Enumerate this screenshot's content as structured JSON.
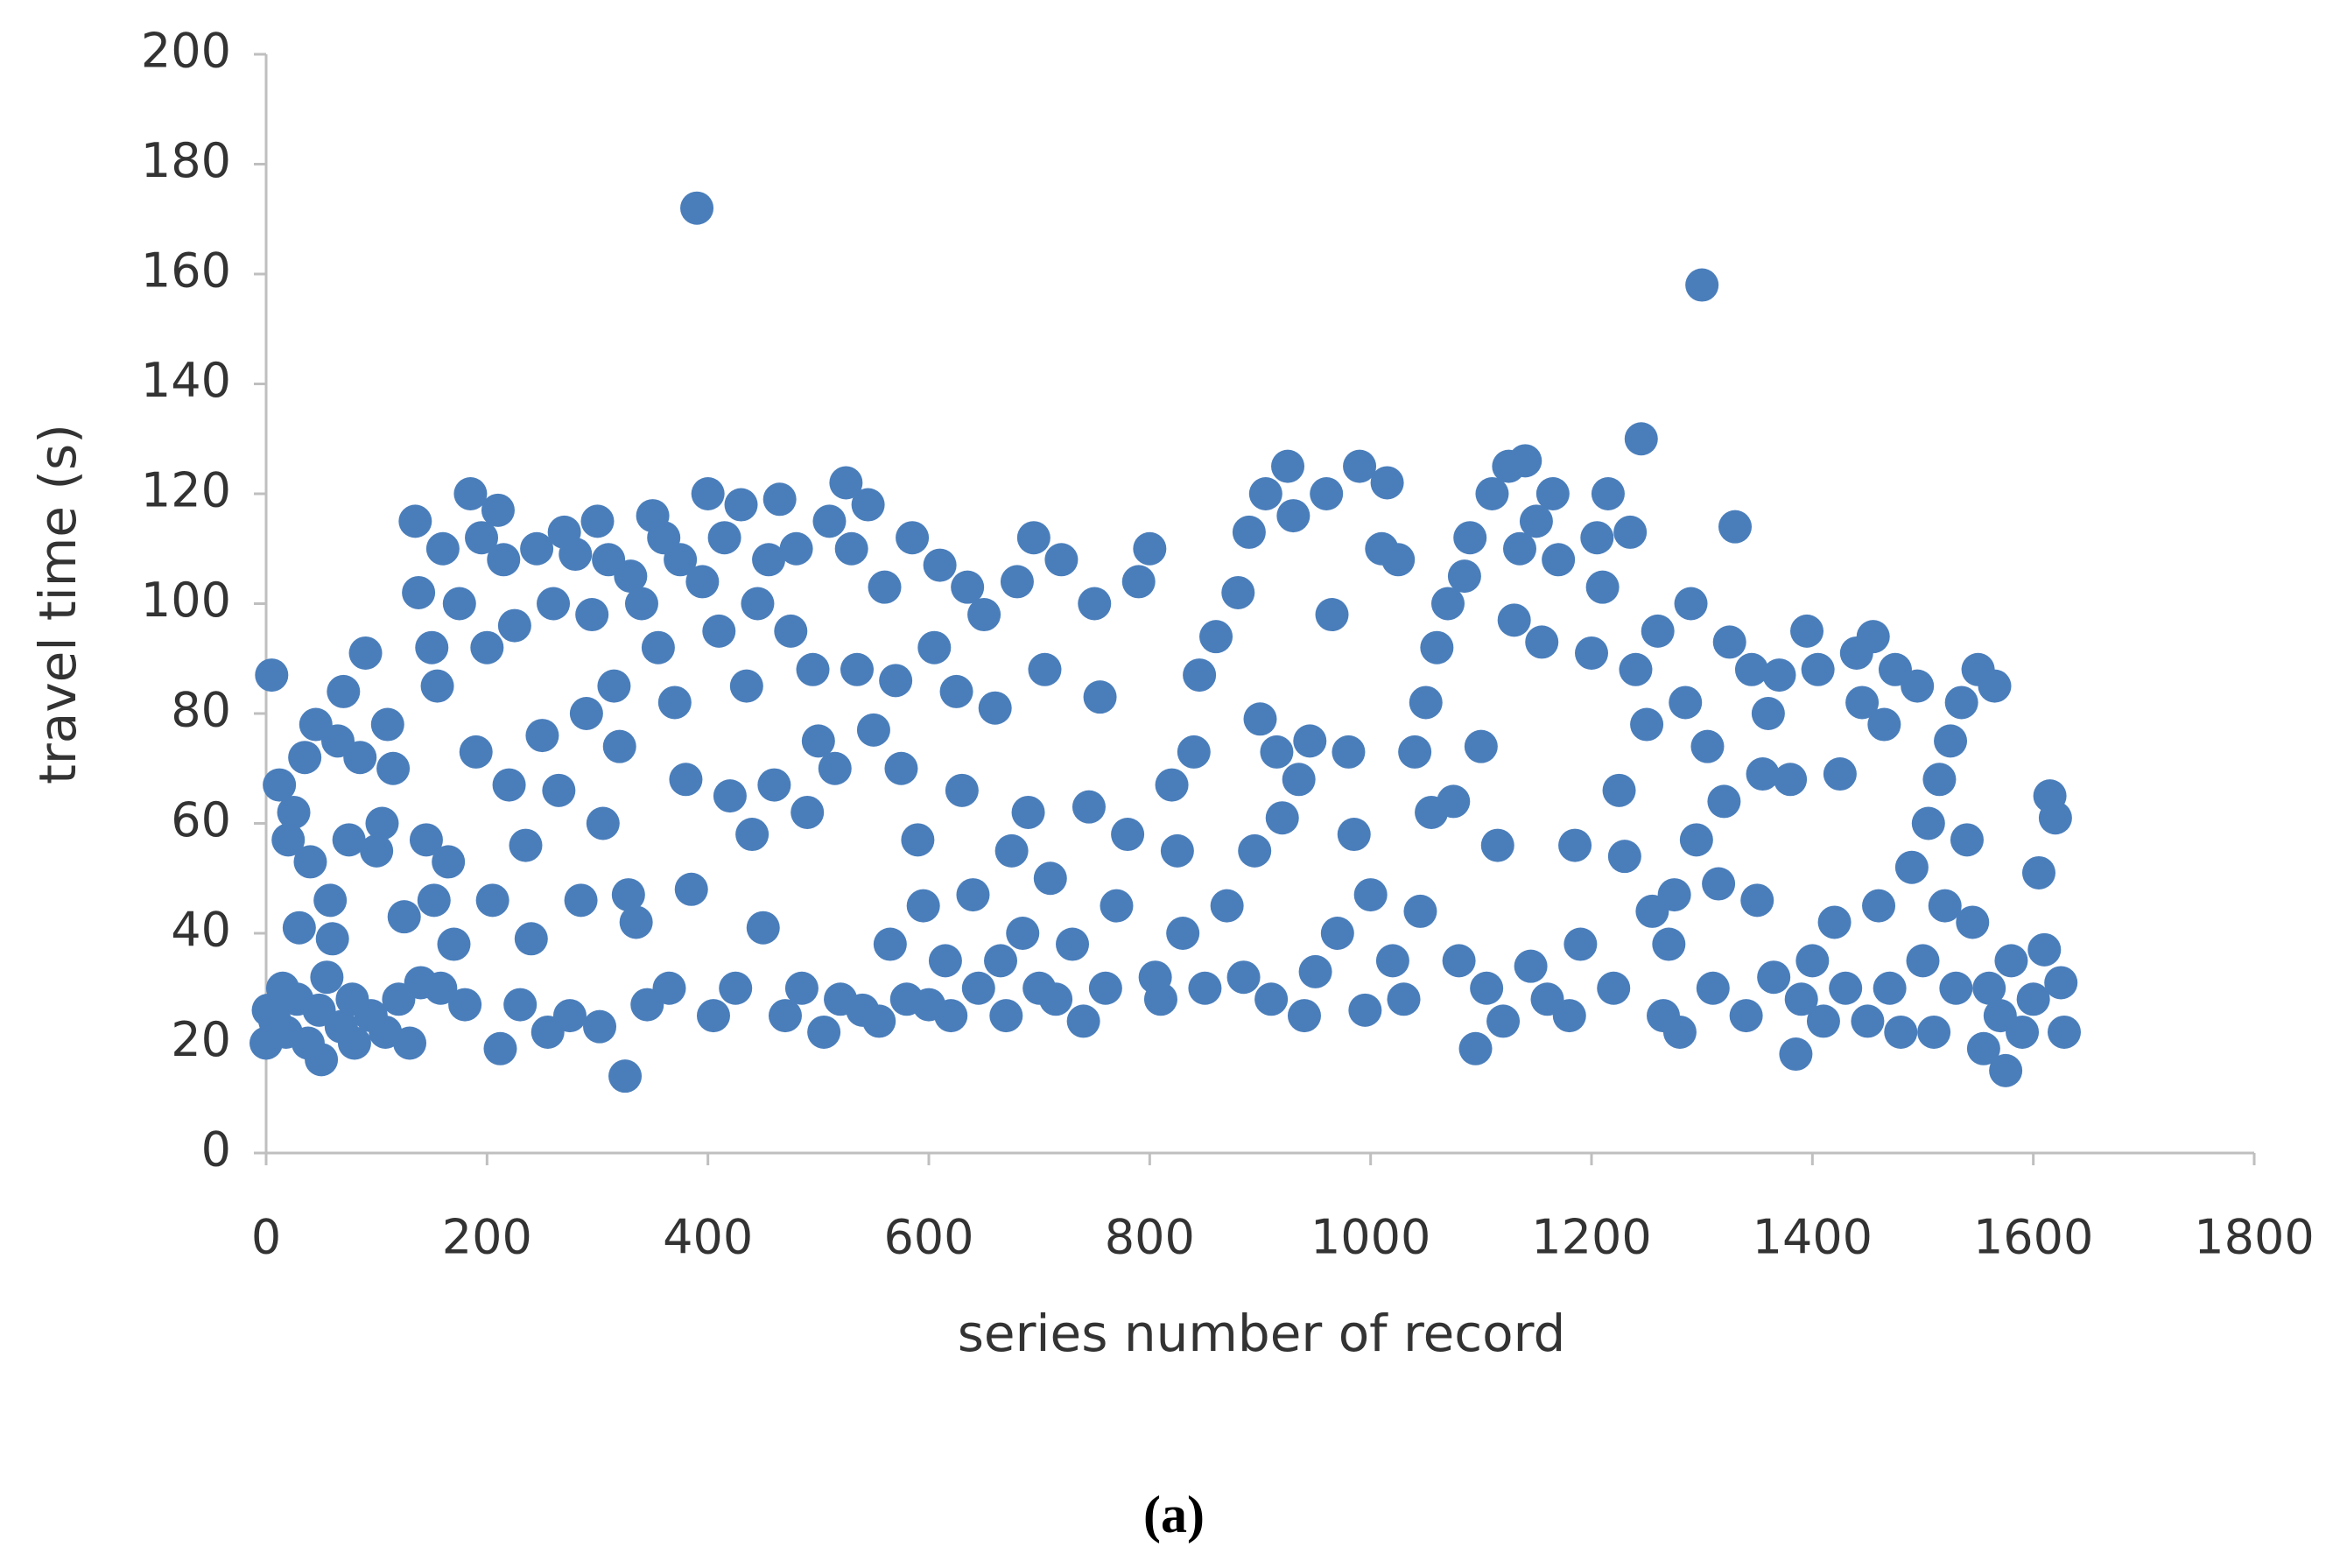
{
  "chart_data": {
    "type": "scatter",
    "xlabel": "series number of record",
    "ylabel": "travel time (s)",
    "caption": "(a)",
    "color": "#4a7ebb",
    "grid": false,
    "xlim": [
      0,
      1800
    ],
    "xticks": [
      0,
      200,
      400,
      600,
      800,
      1000,
      1200,
      1400,
      1600,
      1800
    ],
    "ylim": [
      0,
      200
    ],
    "yticks": [
      0,
      20,
      40,
      60,
      80,
      100,
      120,
      140,
      160,
      180,
      200
    ],
    "x": [
      0,
      2,
      5,
      8,
      12,
      15,
      18,
      20,
      25,
      28,
      30,
      35,
      38,
      40,
      45,
      48,
      50,
      55,
      58,
      60,
      65,
      68,
      70,
      75,
      78,
      80,
      85,
      90,
      95,
      100,
      105,
      108,
      110,
      115,
      120,
      125,
      130,
      135,
      138,
      140,
      145,
      150,
      152,
      155,
      158,
      160,
      165,
      170,
      175,
      180,
      185,
      190,
      195,
      200,
      205,
      210,
      212,
      215,
      220,
      225,
      230,
      235,
      240,
      245,
      250,
      255,
      260,
      265,
      270,
      275,
      280,
      285,
      290,
      295,
      300,
      302,
      305,
      310,
      315,
      320,
      325,
      328,
      330,
      335,
      340,
      345,
      350,
      355,
      360,
      365,
      370,
      375,
      380,
      385,
      390,
      395,
      400,
      405,
      410,
      415,
      420,
      425,
      430,
      435,
      440,
      445,
      450,
      455,
      460,
      465,
      470,
      475,
      480,
      485,
      490,
      495,
      500,
      505,
      510,
      515,
      520,
      525,
      530,
      535,
      540,
      545,
      550,
      555,
      560,
      565,
      570,
      575,
      580,
      585,
      590,
      595,
      600,
      605,
      610,
      615,
      620,
      625,
      630,
      635,
      640,
      645,
      650,
      660,
      665,
      670,
      675,
      680,
      685,
      690,
      695,
      700,
      705,
      710,
      715,
      720,
      730,
      740,
      745,
      750,
      755,
      760,
      770,
      780,
      790,
      800,
      805,
      810,
      820,
      825,
      830,
      840,
      845,
      850,
      860,
      870,
      880,
      885,
      890,
      895,
      900,
      905,
      910,
      915,
      920,
      925,
      930,
      935,
      940,
      945,
      950,
      960,
      965,
      970,
      980,
      985,
      990,
      995,
      1000,
      1010,
      1015,
      1020,
      1025,
      1030,
      1040,
      1045,
      1050,
      1055,
      1060,
      1070,
      1075,
      1080,
      1085,
      1090,
      1095,
      1100,
      1105,
      1110,
      1115,
      1120,
      1125,
      1130,
      1135,
      1140,
      1145,
      1150,
      1155,
      1160,
      1165,
      1170,
      1180,
      1185,
      1190,
      1200,
      1205,
      1210,
      1215,
      1220,
      1225,
      1230,
      1235,
      1240,
      1245,
      1250,
      1255,
      1260,
      1265,
      1270,
      1275,
      1280,
      1285,
      1290,
      1295,
      1300,
      1305,
      1310,
      1315,
      1320,
      1325,
      1330,
      1340,
      1345,
      1350,
      1355,
      1360,
      1365,
      1370,
      1380,
      1385,
      1390,
      1395,
      1400,
      1405,
      1410,
      1420,
      1425,
      1430,
      1440,
      1445,
      1450,
      1455,
      1460,
      1465,
      1470,
      1475,
      1480,
      1490,
      1495,
      1500,
      1505,
      1510,
      1515,
      1520,
      1525,
      1530,
      1535,
      1540,
      1545,
      1550,
      1555,
      1560,
      1565,
      1570,
      1575,
      1580,
      1590,
      1600,
      1605,
      1610,
      1615,
      1620,
      1625,
      1628
    ],
    "y": [
      20,
      26,
      87,
      24,
      67,
      30,
      22,
      57,
      62,
      28,
      41,
      72,
      20,
      53,
      78,
      26,
      17,
      32,
      46,
      39,
      75,
      23,
      84,
      57,
      28,
      20,
      72,
      91,
      25,
      55,
      60,
      22,
      78,
      70,
      28,
      43,
      20,
      115,
      102,
      31,
      57,
      92,
      46,
      85,
      30,
      110,
      53,
      38,
      100,
      27,
      120,
      73,
      112,
      92,
      46,
      117,
      19,
      108,
      67,
      96,
      27,
      56,
      39,
      110,
      76,
      22,
      100,
      66,
      113,
      25,
      109,
      46,
      80,
      98,
      115,
      23,
      60,
      108,
      85,
      74,
      14,
      47,
      105,
      42,
      100,
      27,
      116,
      92,
      112,
      30,
      82,
      108,
      68,
      48,
      172,
      104,
      120,
      25,
      95,
      112,
      65,
      30,
      118,
      85,
      58,
      100,
      41,
      108,
      67,
      119,
      25,
      95,
      110,
      30,
      62,
      88,
      75,
      22,
      115,
      70,
      28,
      122,
      110,
      88,
      26,
      118,
      77,
      24,
      103,
      38,
      86,
      70,
      28,
      112,
      57,
      45,
      27,
      92,
      107,
      35,
      25,
      84,
      66,
      103,
      47,
      30,
      98,
      81,
      35,
      25,
      55,
      104,
      40,
      62,
      112,
      30,
      88,
      50,
      28,
      108,
      38,
      24,
      63,
      100,
      83,
      30,
      45,
      58,
      104,
      110,
      32,
      28,
      67,
      55,
      40,
      73,
      87,
      30,
      94,
      45,
      102,
      32,
      113,
      55,
      79,
      120,
      28,
      73,
      61,
      125,
      116,
      68,
      25,
      75,
      33,
      120,
      98,
      40,
      73,
      58,
      125,
      26,
      47,
      110,
      122,
      35,
      108,
      28,
      73,
      44,
      82,
      62,
      92,
      100,
      64,
      35,
      105,
      112,
      19,
      74,
      30,
      120,
      56,
      24,
      125,
      97,
      110,
      126,
      34,
      115,
      93,
      28,
      120,
      108,
      25,
      56,
      38,
      91,
      112,
      103,
      120,
      30,
      66,
      54,
      113,
      88,
      130,
      78,
      44,
      95,
      25,
      38,
      47,
      22,
      82,
      100,
      57,
      158,
      74,
      30,
      49,
      64,
      93,
      114,
      25,
      88,
      46,
      69,
      80,
      32,
      87,
      68,
      18,
      28,
      95,
      35,
      88,
      24,
      42,
      69,
      30,
      91,
      82,
      24,
      94,
      45,
      78,
      30,
      88,
      22,
      52,
      85,
      35,
      60,
      22,
      68,
      45,
      75,
      30,
      82,
      57,
      42,
      88,
      19,
      30,
      85,
      25,
      15,
      35,
      22,
      28,
      51,
      37,
      65,
      61,
      31,
      22
    ]
  }
}
